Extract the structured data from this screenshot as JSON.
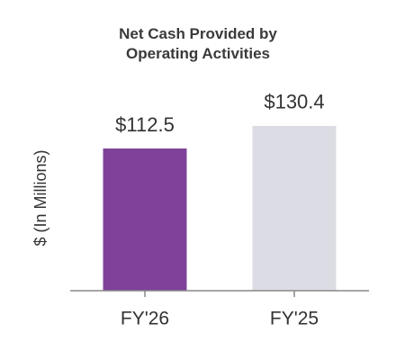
{
  "chart_data": {
    "type": "bar",
    "title": "Net Cash Provided by Operating Activities",
    "y_label": "$ (In Millions)",
    "categories": [
      "FY'26",
      "FY'25"
    ],
    "values": [
      112.5,
      130.4
    ],
    "value_labels": [
      "$112.5",
      "$130.4"
    ],
    "colors": [
      "#7f4199",
      "#dcdce4"
    ],
    "ylim": [
      0,
      140
    ]
  }
}
